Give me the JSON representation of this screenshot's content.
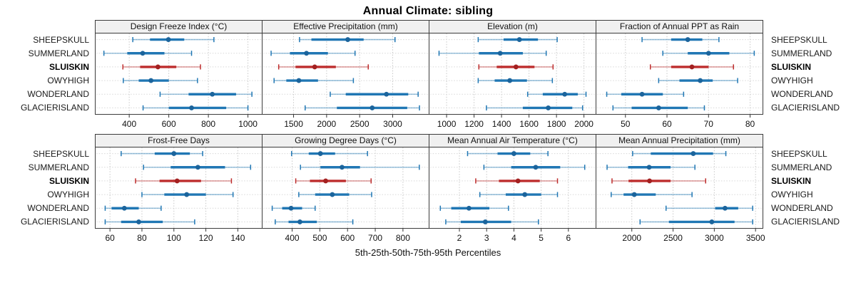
{
  "title": "Annual Climate: sibling",
  "caption": "5th-25th-50th-75th-95th Percentiles",
  "stations": [
    "SHEEPSKULL",
    "SUMMERLAND",
    "SLUISKIN",
    "OWYHIGH",
    "WONDERLAND",
    "GLACIERISLAND"
  ],
  "highlight_station": "SLUISKIN",
  "palette": {
    "default": {
      "main": "#2077b4",
      "dot": "#1b649c"
    },
    "highlight": {
      "main": "#bd2c2c",
      "dot": "#a32020"
    }
  },
  "layout": {
    "rows": 2,
    "cols": 4,
    "legend": "none",
    "grid": "dotted vertical gridlines + dotted row guides"
  },
  "chart_data": [
    {
      "type": "scatter",
      "subtype": "percentile-interval-dotplot",
      "row": 0,
      "col": 0,
      "title": "Design Freeze Index (°C)",
      "xlim": [
        230,
        1070
      ],
      "ticks": [
        400,
        600,
        800,
        1000
      ],
      "percentiles": [
        5,
        25,
        50,
        75,
        95
      ],
      "series": [
        {
          "name": "SHEEPSKULL",
          "values": [
            418,
            505,
            598,
            678,
            828
          ]
        },
        {
          "name": "SUMMERLAND",
          "values": [
            272,
            390,
            468,
            578,
            715
          ]
        },
        {
          "name": "SLUISKIN",
          "values": [
            368,
            455,
            545,
            638,
            760
          ]
        },
        {
          "name": "OWYHIGH",
          "values": [
            370,
            448,
            510,
            600,
            745
          ]
        },
        {
          "name": "WONDERLAND",
          "values": [
            556,
            700,
            820,
            940,
            1020
          ]
        },
        {
          "name": "GLACIERISLAND",
          "values": [
            470,
            600,
            715,
            890,
            1000
          ]
        }
      ]
    },
    {
      "type": "scatter",
      "subtype": "percentile-interval-dotplot",
      "row": 0,
      "col": 1,
      "title": "Effective Precipitation (mm)",
      "xlim": [
        1030,
        3545
      ],
      "ticks": [
        1500,
        2000,
        2500,
        3000
      ],
      "percentiles": [
        5,
        25,
        50,
        75,
        95
      ],
      "series": [
        {
          "name": "SHEEPSKULL",
          "values": [
            1590,
            1770,
            2320,
            2560,
            3035
          ]
        },
        {
          "name": "SUMMERLAND",
          "values": [
            1160,
            1445,
            1695,
            2020,
            2430
          ]
        },
        {
          "name": "SLUISKIN",
          "values": [
            1275,
            1530,
            1820,
            2140,
            2630
          ]
        },
        {
          "name": "OWYHIGH",
          "values": [
            1205,
            1390,
            1580,
            1870,
            2405
          ]
        },
        {
          "name": "WONDERLAND",
          "values": [
            2055,
            2290,
            2905,
            3235,
            3385
          ]
        },
        {
          "name": "GLACIERISLAND",
          "values": [
            1675,
            2155,
            2690,
            3220,
            3405
          ]
        }
      ]
    },
    {
      "type": "scatter",
      "subtype": "percentile-interval-dotplot",
      "row": 0,
      "col": 2,
      "title": "Elevation (m)",
      "xlim": [
        875,
        2085
      ],
      "ticks": [
        1000,
        1200,
        1400,
        1600,
        1800,
        2000
      ],
      "percentiles": [
        5,
        25,
        50,
        75,
        95
      ],
      "series": [
        {
          "name": "SHEEPSKULL",
          "values": [
            1230,
            1415,
            1530,
            1665,
            1805
          ]
        },
        {
          "name": "SUMMERLAND",
          "values": [
            945,
            1235,
            1390,
            1555,
            1725
          ]
        },
        {
          "name": "SLUISKIN",
          "values": [
            1235,
            1365,
            1505,
            1640,
            1775
          ]
        },
        {
          "name": "OWYHIGH",
          "values": [
            1230,
            1350,
            1460,
            1585,
            1770
          ]
        },
        {
          "name": "WONDERLAND",
          "values": [
            1590,
            1700,
            1860,
            1955,
            2015
          ]
        },
        {
          "name": "GLACIERISLAND",
          "values": [
            1290,
            1555,
            1740,
            1915,
            1990
          ]
        }
      ]
    },
    {
      "type": "scatter",
      "subtype": "percentile-interval-dotplot",
      "row": 0,
      "col": 3,
      "title": "Fraction of Annual PPT as Rain",
      "xlim": [
        43,
        83
      ],
      "ticks": [
        50,
        60,
        70,
        80
      ],
      "percentiles": [
        5,
        25,
        50,
        75,
        95
      ],
      "series": [
        {
          "name": "SHEEPSKULL",
          "values": [
            54,
            61,
            65,
            68.5,
            72.5
          ]
        },
        {
          "name": "SUMMERLAND",
          "values": [
            59,
            65,
            70,
            75,
            81
          ]
        },
        {
          "name": "SLUISKIN",
          "values": [
            56,
            61,
            66,
            70,
            76
          ]
        },
        {
          "name": "OWYHIGH",
          "values": [
            58,
            63,
            68,
            71,
            77
          ]
        },
        {
          "name": "WONDERLAND",
          "values": [
            45.5,
            49,
            54,
            59,
            64
          ]
        },
        {
          "name": "GLACIERISLAND",
          "values": [
            47,
            51.5,
            58,
            65,
            69
          ]
        }
      ]
    },
    {
      "type": "scatter",
      "subtype": "percentile-interval-dotplot",
      "row": 1,
      "col": 0,
      "title": "Frost-Free Days",
      "xlim": [
        51,
        155
      ],
      "ticks": [
        60,
        80,
        100,
        120,
        140
      ],
      "percentiles": [
        5,
        25,
        50,
        75,
        95
      ],
      "series": [
        {
          "name": "SHEEPSKULL",
          "values": [
            67,
            88,
            100,
            110,
            118
          ]
        },
        {
          "name": "SUMMERLAND",
          "values": [
            81,
            98,
            115,
            132,
            148
          ]
        },
        {
          "name": "SLUISKIN",
          "values": [
            76,
            91,
            102,
            117,
            136
          ]
        },
        {
          "name": "OWYHIGH",
          "values": [
            80,
            94,
            108,
            120,
            137
          ]
        },
        {
          "name": "WONDERLAND",
          "values": [
            57,
            61,
            69,
            78,
            92
          ]
        },
        {
          "name": "GLACIERISLAND",
          "values": [
            57,
            67,
            78,
            93,
            113
          ]
        }
      ]
    },
    {
      "type": "scatter",
      "subtype": "percentile-interval-dotplot",
      "row": 1,
      "col": 1,
      "title": "Growing Degree Days (°C)",
      "xlim": [
        293,
        893
      ],
      "ticks": [
        400,
        500,
        600,
        700,
        800
      ],
      "percentiles": [
        5,
        25,
        50,
        75,
        95
      ],
      "series": [
        {
          "name": "SHEEPSKULL",
          "values": [
            398,
            460,
            502,
            555,
            672
          ]
        },
        {
          "name": "SUMMERLAND",
          "values": [
            430,
            502,
            580,
            645,
            859
          ]
        },
        {
          "name": "SLUISKIN",
          "values": [
            413,
            464,
            521,
            594,
            685
          ]
        },
        {
          "name": "OWYHIGH",
          "values": [
            424,
            483,
            545,
            606,
            687
          ]
        },
        {
          "name": "WONDERLAND",
          "values": [
            328,
            364,
            396,
            436,
            483
          ]
        },
        {
          "name": "GLACIERISLAND",
          "values": [
            339,
            387,
            428,
            489,
            619
          ]
        }
      ]
    },
    {
      "type": "scatter",
      "subtype": "percentile-interval-dotplot",
      "row": 1,
      "col": 2,
      "title": "Mean Annual Air Temperature (°C)",
      "xlim": [
        0.9,
        7.0
      ],
      "ticks": [
        2,
        3,
        4,
        5,
        6
      ],
      "percentiles": [
        5,
        25,
        50,
        75,
        95
      ],
      "series": [
        {
          "name": "SHEEPSKULL",
          "values": [
            2.3,
            3.4,
            4.0,
            4.6,
            5.25
          ]
        },
        {
          "name": "SUMMERLAND",
          "values": [
            2.9,
            3.9,
            4.8,
            5.7,
            6.6
          ]
        },
        {
          "name": "SLUISKIN",
          "values": [
            2.6,
            3.45,
            4.15,
            4.95,
            5.6
          ]
        },
        {
          "name": "OWYHIGH",
          "values": [
            2.75,
            3.7,
            4.4,
            5.0,
            5.6
          ]
        },
        {
          "name": "WONDERLAND",
          "values": [
            1.3,
            1.7,
            2.35,
            3.1,
            3.8
          ]
        },
        {
          "name": "GLACIERISLAND",
          "values": [
            1.5,
            2.05,
            2.95,
            3.9,
            4.9
          ]
        }
      ]
    },
    {
      "type": "scatter",
      "subtype": "percentile-interval-dotplot",
      "row": 1,
      "col": 3,
      "title": "Mean Annual Precipitation (mm)",
      "xlim": [
        1570,
        3585
      ],
      "ticks": [
        2000,
        2500,
        3000,
        3500
      ],
      "percentiles": [
        5,
        25,
        50,
        75,
        95
      ],
      "series": [
        {
          "name": "SHEEPSKULL",
          "values": [
            2010,
            2230,
            2745,
            2985,
            3140
          ]
        },
        {
          "name": "SUMMERLAND",
          "values": [
            1700,
            1955,
            2210,
            2470,
            2765
          ]
        },
        {
          "name": "SLUISKIN",
          "values": [
            1760,
            1960,
            2215,
            2470,
            2895
          ]
        },
        {
          "name": "OWYHIGH",
          "values": [
            1750,
            1900,
            2030,
            2290,
            2730
          ]
        },
        {
          "name": "WONDERLAND",
          "values": [
            2415,
            3010,
            3130,
            3290,
            3465
          ]
        },
        {
          "name": "GLACIERISLAND",
          "values": [
            2100,
            2450,
            2970,
            3245,
            3465
          ]
        }
      ]
    }
  ]
}
